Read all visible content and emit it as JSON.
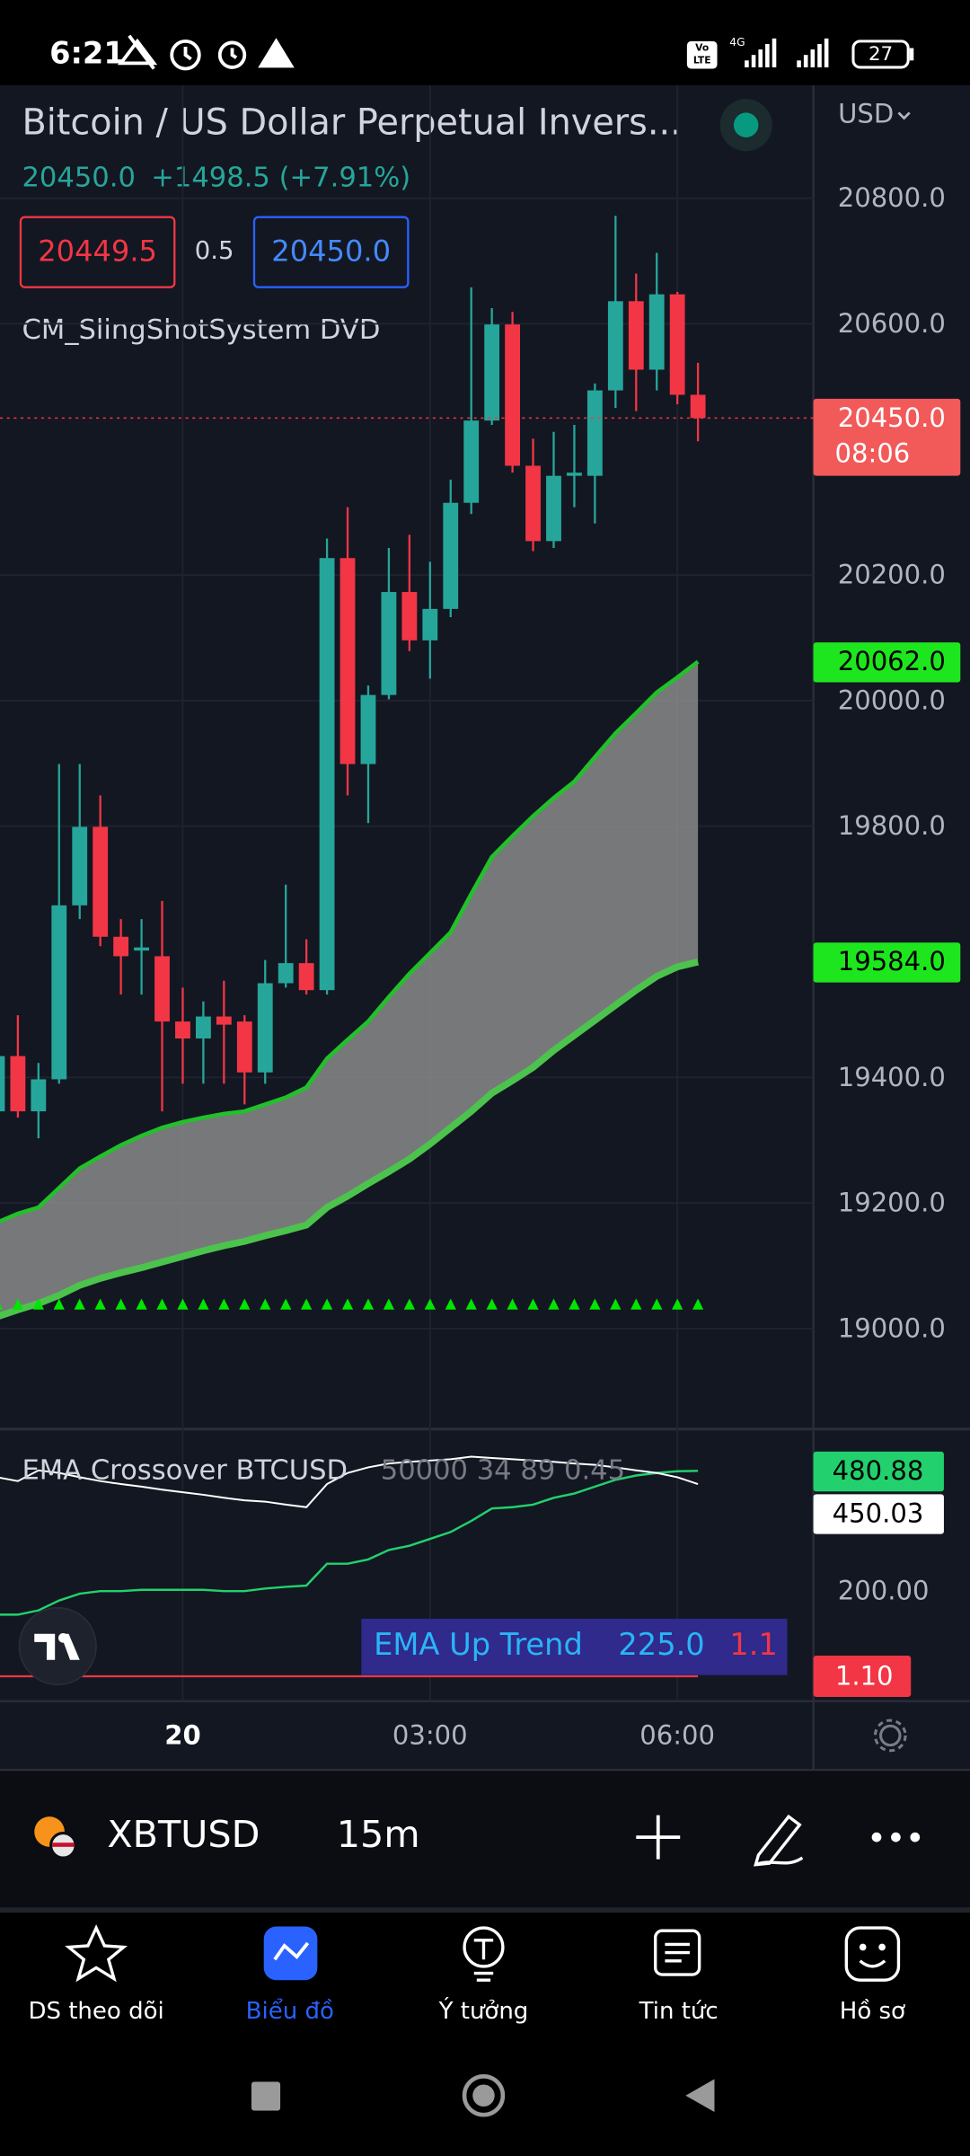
{
  "status_bar": {
    "time": "6:21",
    "volte": [
      "Vo",
      "LTE"
    ],
    "network": "4G",
    "battery": "27"
  },
  "header": {
    "symbol_title": "Bitcoin / US Dollar Perpetual Invers...",
    "last_price": "20450.0",
    "change": "+1498.5 (+7.91%)",
    "bid": "20449.5",
    "spread": "0.5",
    "ask": "20450.0"
  },
  "chart_data": [
    {
      "type": "candlestick",
      "indicator": "CM_SlingShotSystem DVD",
      "currency": "USD",
      "up_color": "#26a69a",
      "down_color": "#f23645",
      "band_fill": "#8a8a8a",
      "grid": true,
      "categories": [
        null,
        null,
        null,
        null,
        null,
        null,
        null,
        null,
        null,
        "20",
        null,
        null,
        null,
        null,
        null,
        null,
        null,
        null,
        null,
        null,
        null,
        "03:00",
        null,
        null,
        null,
        null,
        null,
        null,
        null,
        null,
        null,
        null,
        null,
        "06:00",
        null
      ],
      "open": [
        19346,
        19434,
        19346,
        19397,
        19674,
        19799,
        19624,
        19602,
        19593,
        19489,
        19462,
        19497,
        19489,
        19408,
        19550,
        19582,
        19539,
        20227,
        19899,
        20009,
        20173,
        20096,
        20146,
        20315,
        20446,
        20599,
        20374,
        20254,
        20358,
        20358,
        20494,
        20636,
        20527,
        20647,
        20487
      ],
      "high": [
        19445,
        19499,
        19423,
        19899,
        19899,
        19849,
        19652,
        19652,
        19681,
        19543,
        19521,
        19554,
        19499,
        19587,
        19707,
        19620,
        20258,
        20308,
        20024,
        20243,
        20264,
        20221,
        20352,
        20658,
        20625,
        20619,
        20417,
        20428,
        20439,
        20505,
        20772,
        20680,
        20713,
        20651,
        20538
      ],
      "low": [
        19336,
        19336,
        19303,
        19390,
        19652,
        19609,
        19532,
        19532,
        19346,
        19390,
        19390,
        19390,
        19357,
        19390,
        19543,
        19532,
        19532,
        19849,
        19805,
        20002,
        20079,
        20035,
        20133,
        20297,
        20439,
        20363,
        20238,
        20243,
        20308,
        20282,
        20466,
        20461,
        20494,
        20472,
        20413
      ],
      "close": [
        19434,
        19346,
        19397,
        19674,
        19799,
        19624,
        19593,
        19607,
        19489,
        19462,
        19497,
        19484,
        19408,
        19550,
        19582,
        19539,
        20227,
        19899,
        20009,
        20173,
        20096,
        20146,
        20315,
        20446,
        20599,
        20374,
        20254,
        20358,
        20363,
        20494,
        20636,
        20527,
        20647,
        20487,
        20450
      ],
      "last_price_label": "20450.0",
      "countdown": "08:06",
      "series": [
        {
          "color": "#22c02a",
          "values": [
            19169,
            19183,
            19193,
            19224,
            19255,
            19274,
            19292,
            19307,
            19320,
            19329,
            19336,
            19342,
            19346,
            19357,
            19368,
            19384,
            19430,
            19460,
            19489,
            19528,
            19565,
            19598,
            19631,
            19692,
            19751,
            19784,
            19816,
            19845,
            19871,
            19910,
            19948,
            19980,
            20013,
            20037,
            20062
          ],
          "value_labels": [
            null,
            null,
            null,
            null,
            null,
            null,
            null,
            null,
            null,
            null,
            null,
            null,
            null,
            null,
            null,
            null,
            null,
            null,
            null,
            null,
            null,
            null,
            null,
            null,
            null,
            null,
            null,
            null,
            null,
            null,
            null,
            null,
            null,
            null,
            "20062.0"
          ]
        },
        {
          "color": "#4cc34c",
          "values": [
            19019,
            19030,
            19040,
            19053,
            19069,
            19080,
            19089,
            19097,
            19106,
            19115,
            19124,
            19132,
            19139,
            19148,
            19156,
            19165,
            19193,
            19211,
            19231,
            19250,
            19270,
            19294,
            19320,
            19346,
            19375,
            19395,
            19416,
            19443,
            19467,
            19491,
            19515,
            19539,
            19561,
            19576,
            19584
          ],
          "value_labels": [
            null,
            null,
            null,
            null,
            null,
            null,
            null,
            null,
            null,
            null,
            null,
            null,
            null,
            null,
            null,
            null,
            null,
            null,
            null,
            null,
            null,
            null,
            null,
            null,
            null,
            null,
            null,
            null,
            null,
            null,
            null,
            null,
            null,
            null,
            "19584.0"
          ]
        }
      ],
      "signal_color": "#00e600",
      "ylim": [
        18840,
        20980
      ],
      "yticks": [
        {
          "value": 19000,
          "label": "19000.0"
        },
        {
          "value": 19200,
          "label": "19200.0"
        },
        {
          "value": 19400,
          "label": "19400.0"
        },
        {
          "value": 19800,
          "label": "19800.0"
        },
        {
          "value": 20000,
          "label": "20000.0"
        },
        {
          "value": 20200,
          "label": "20200.0"
        },
        {
          "value": 20600,
          "label": "20600.0"
        },
        {
          "value": 20800,
          "label": "20800.0"
        }
      ]
    },
    {
      "type": "line",
      "title": "EMA Crossover BTCUSD",
      "params": "50000 34 89 0.45",
      "annotation": {
        "text": "EMA Up Trend",
        "value": "225.0",
        "ratio": "1.1"
      },
      "series": [
        {
          "color": "#22d16d",
          "values": [
            145,
            145,
            155,
            178,
            194,
            200,
            200,
            203,
            203,
            203,
            203,
            200,
            200,
            206,
            210,
            213,
            264,
            264,
            274,
            296,
            306,
            322,
            338,
            364,
            393,
            396,
            402,
            418,
            428,
            444,
            460,
            470,
            476,
            480,
            480.88
          ],
          "value_labels": [
            null,
            null,
            null,
            null,
            null,
            null,
            null,
            null,
            null,
            null,
            null,
            null,
            null,
            null,
            null,
            null,
            null,
            null,
            null,
            null,
            null,
            null,
            null,
            null,
            null,
            null,
            null,
            null,
            null,
            null,
            null,
            null,
            null,
            null,
            "480.88"
          ]
        },
        {
          "color": "#ffffff",
          "values": [
            466,
            457,
            482,
            476,
            466,
            457,
            450,
            444,
            437,
            431,
            425,
            418,
            412,
            409,
            402,
            396,
            450,
            476,
            489,
            498,
            502,
            505,
            508,
            514,
            511,
            508,
            505,
            502,
            498,
            495,
            489,
            482,
            476,
            466,
            450.03
          ],
          "value_labels": [
            null,
            null,
            null,
            null,
            null,
            null,
            null,
            null,
            null,
            null,
            null,
            null,
            null,
            null,
            null,
            null,
            null,
            null,
            null,
            null,
            null,
            null,
            null,
            null,
            null,
            null,
            null,
            null,
            null,
            null,
            null,
            null,
            null,
            null,
            "450.03"
          ]
        }
      ],
      "levels": [
        {
          "value": 1.1,
          "label": "1.10",
          "color": "#f23645"
        }
      ],
      "ylim": [
        -57,
        572
      ],
      "yticks": [
        {
          "value": 200,
          "label": "200.00"
        }
      ]
    }
  ],
  "toolbar": {
    "symbol": "XBTUSD",
    "interval": "15m"
  },
  "nav": [
    {
      "label": "DS theo dõi"
    },
    {
      "label": "Biểu đồ"
    },
    {
      "label": "Ý tưởng"
    },
    {
      "label": "Tin tức"
    },
    {
      "label": "Hồ sơ"
    }
  ]
}
